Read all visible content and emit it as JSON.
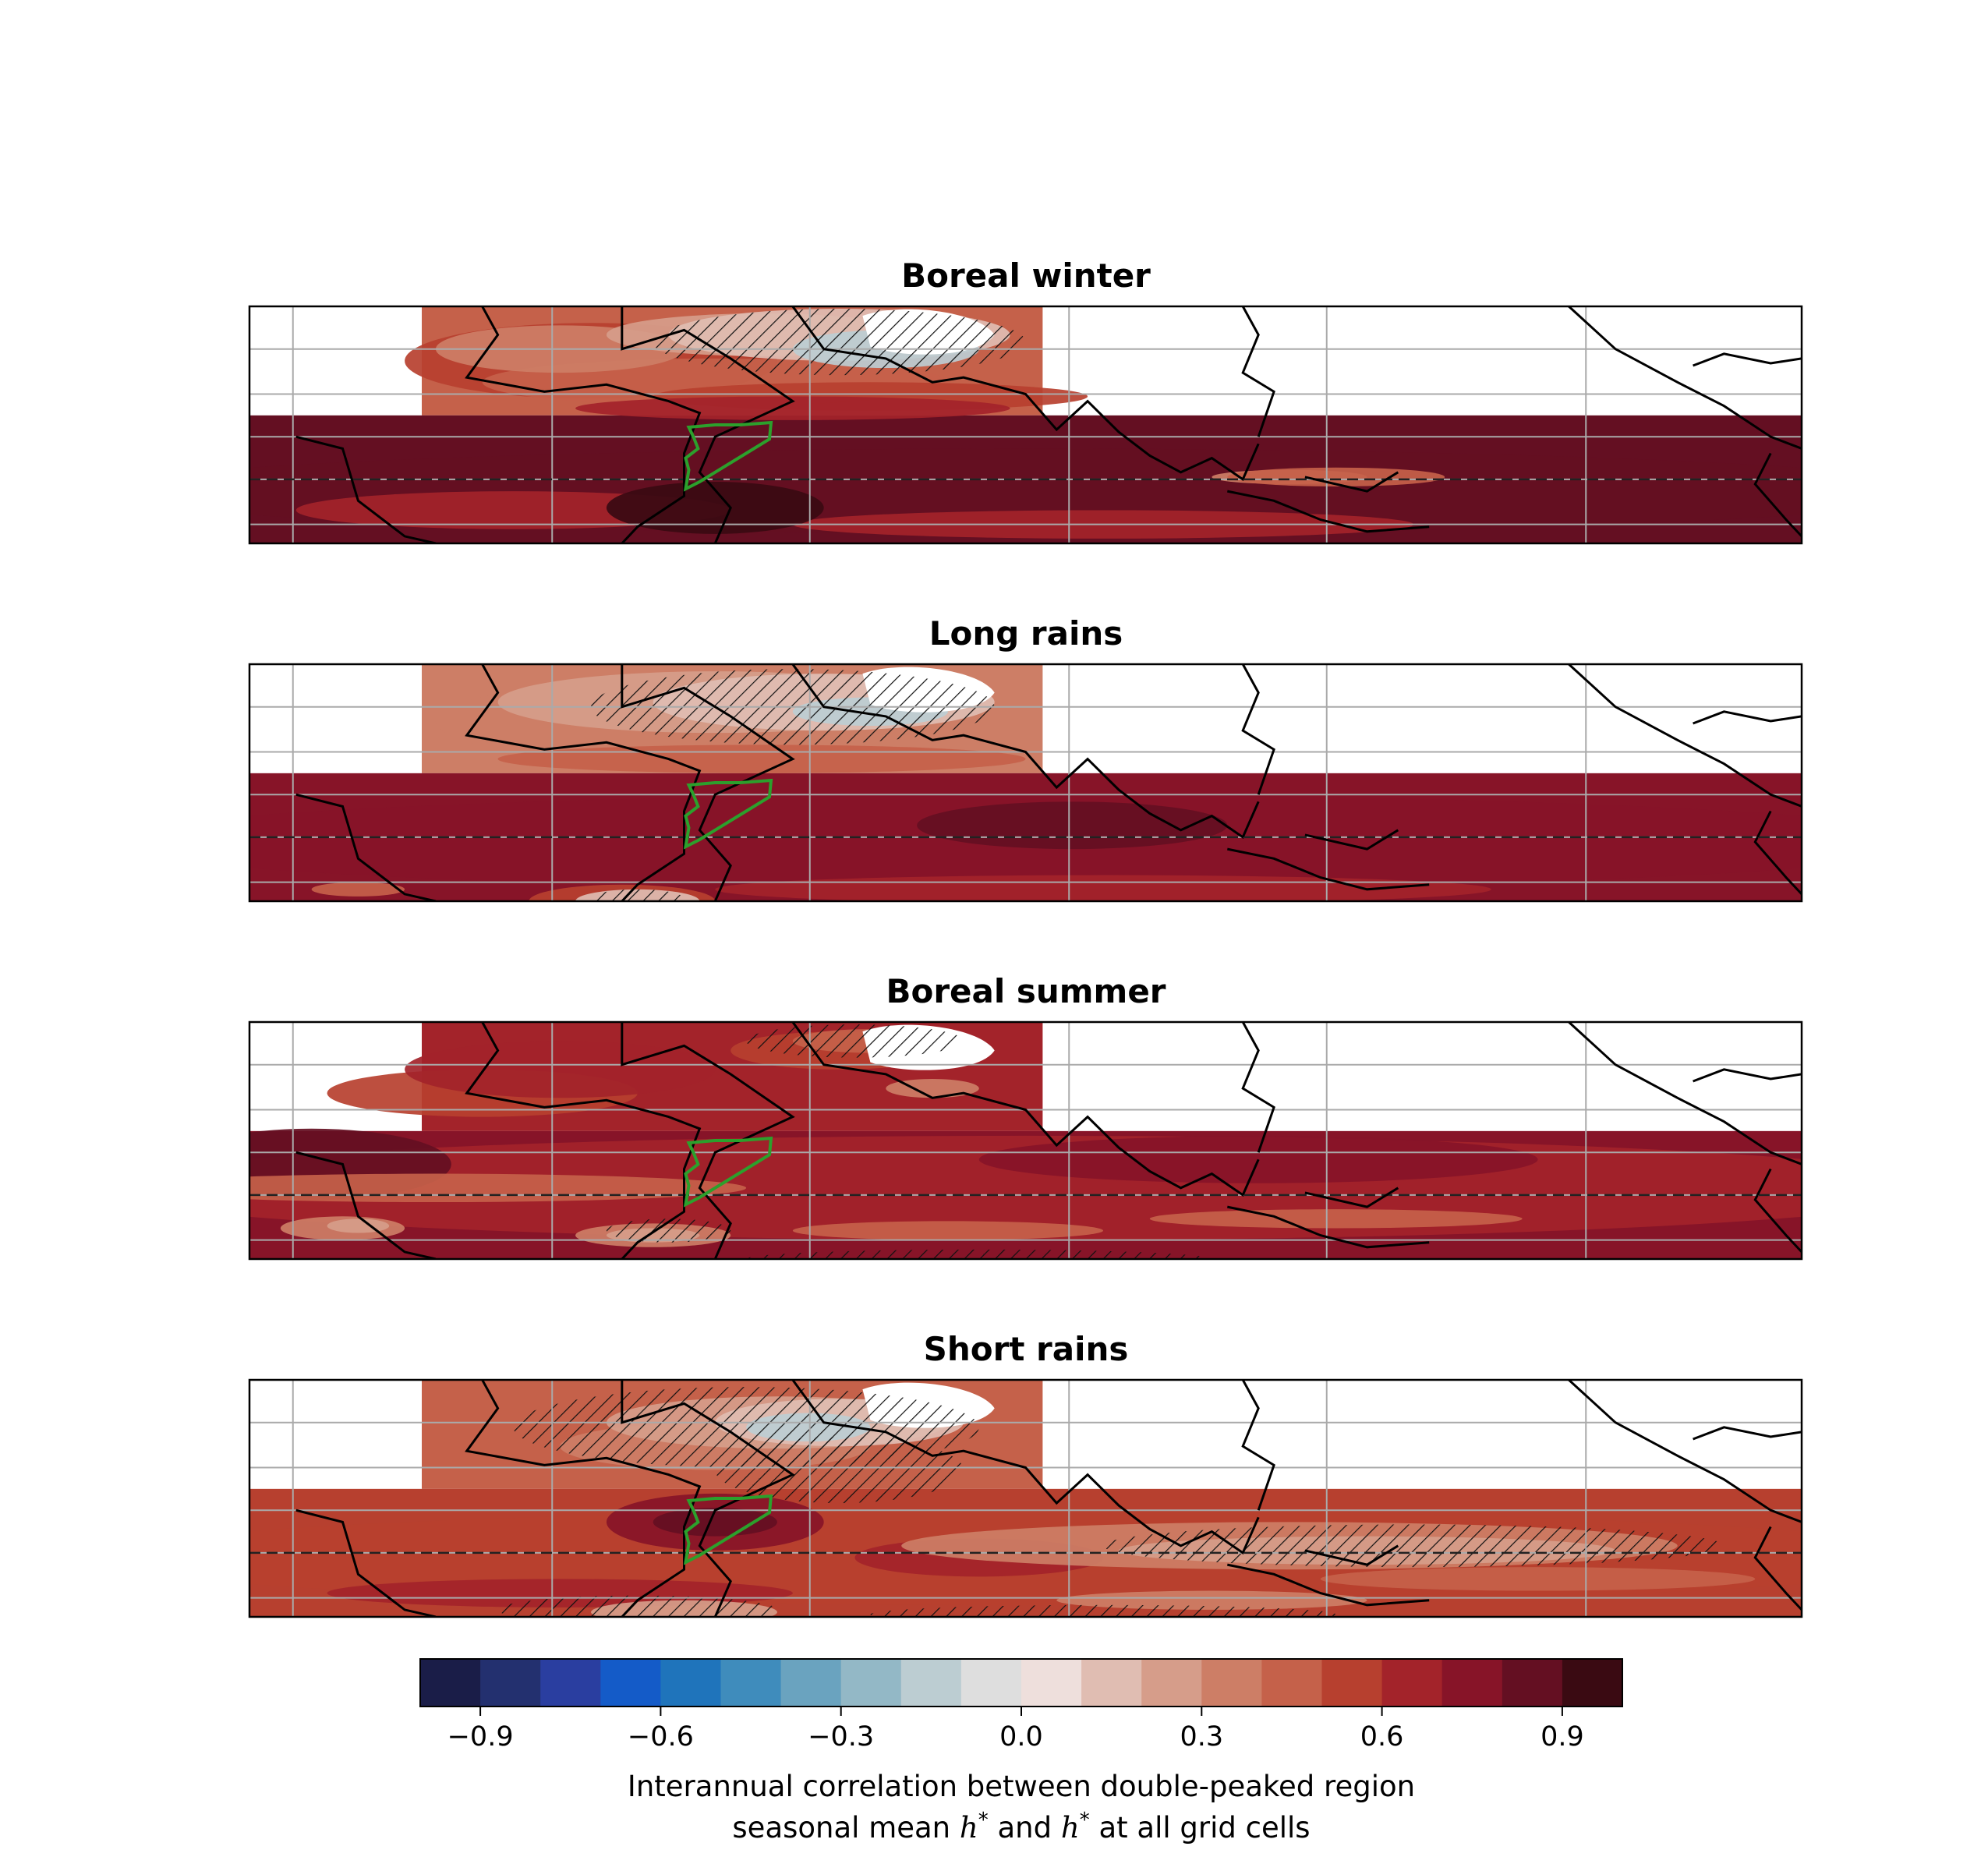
{
  "panels": [
    {
      "title": "Boreal winter",
      "variant": "winter"
    },
    {
      "title": "Long rains",
      "variant": "long"
    },
    {
      "title": "Boreal summer",
      "variant": "summer"
    },
    {
      "title": "Short rains",
      "variant": "short"
    }
  ],
  "colorbar": {
    "levels": [
      -1.0,
      -0.9,
      -0.8,
      -0.7,
      -0.6,
      -0.5,
      -0.4,
      -0.3,
      -0.2,
      -0.1,
      0.0,
      0.1,
      0.2,
      0.3,
      0.4,
      0.5,
      0.6,
      0.7,
      0.8,
      0.9,
      1.0
    ],
    "colors": [
      "#1a1d48",
      "#23306f",
      "#2a3ea0",
      "#145bc8",
      "#1f74bb",
      "#3f8cbc",
      "#6aa3bf",
      "#93b8c6",
      "#bccdd2",
      "#dedede",
      "#eedfdc",
      "#e0bdb2",
      "#d69d8a",
      "#cd7e66",
      "#c5614a",
      "#b7402f",
      "#a3232a",
      "#871428",
      "#640f22",
      "#3a0a12"
    ],
    "ticks": [
      "−0.9",
      "−0.6",
      "−0.3",
      "0.0",
      "0.3",
      "0.6",
      "0.9"
    ],
    "label_line1": "Interannual correlation between double-peaked region",
    "label_line2_pre": "seasonal mean ",
    "label_h": "h",
    "label_star": "*",
    "label_line2_mid": " and ",
    "label_line2_post": " at all grid cells"
  },
  "colors": {
    "region_outline": "#2ca02c",
    "coast": "#000000",
    "grid": "#aaaaaa",
    "frame": "#000000"
  }
}
